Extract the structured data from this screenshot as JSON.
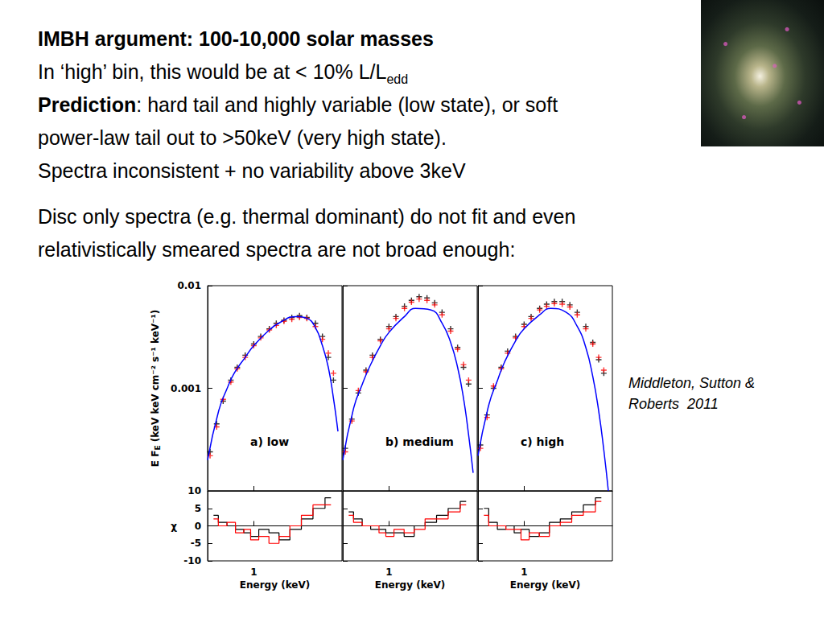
{
  "slide": {
    "lines": [
      [
        {
          "text": "IMBH argument: 100-10,000 solar masses",
          "style": "bold"
        }
      ],
      [
        {
          "text": "In ‘high’ bin, this would be at < 10% L/L"
        },
        {
          "text": "edd",
          "style": "sub"
        }
      ],
      [
        {
          "text": "Prediction",
          "style": "bold"
        },
        {
          "text": ": hard tail and highly variable (low state), or soft"
        }
      ],
      [
        {
          "text": "power-law tail out to >50keV (very high state)."
        }
      ],
      [
        {
          "text": "Spectra inconsistent + no variability above 3keV"
        }
      ]
    ],
    "paragraph": [
      [
        {
          "text": "Disc only spectra (e.g. thermal dominant) do not fit and even"
        }
      ],
      [
        {
          "text": "relativistically smeared spectra are not broad enough:"
        }
      ]
    ],
    "citation": [
      "Middleton, Sutton &",
      "Roberts  2011"
    ]
  },
  "chart_data": [
    {
      "type": "line",
      "title": "a) low",
      "ylabel": [
        {
          "text": "E F"
        },
        {
          "text": "E",
          "style": "sub"
        },
        {
          "text": " (keV keV cm⁻² s⁻¹ keV⁻¹)"
        }
      ],
      "log": true,
      "xlim": [
        0.3,
        10
      ],
      "xticks": [
        1
      ],
      "ylim": [
        0.0001,
        0.01
      ],
      "yticks": [
        0.001,
        0.01
      ],
      "tick_labels": "y",
      "series": [
        {
          "type": "scatter",
          "color": "#000000",
          "marker": "plus",
          "x": [
            0.32,
            0.38,
            0.45,
            0.55,
            0.65,
            0.8,
            1,
            1.2,
            1.5,
            1.8,
            2.2,
            2.7,
            3.3,
            4,
            5,
            6,
            7,
            8
          ],
          "values": [
            0.00024,
            0.00045,
            0.00075,
            0.0012,
            0.0016,
            0.0021,
            0.0027,
            0.0032,
            0.0038,
            0.0043,
            0.0046,
            0.0049,
            0.0051,
            0.0049,
            0.0043,
            0.0032,
            0.002,
            0.0012
          ]
        },
        {
          "type": "scatter",
          "color": "#ff0000",
          "marker": "plus",
          "x": [
            0.32,
            0.38,
            0.45,
            0.55,
            0.65,
            0.8,
            1,
            1.2,
            1.5,
            1.8,
            2.2,
            2.7,
            3.3,
            4,
            5,
            6,
            7,
            8
          ],
          "values": [
            0.00022,
            0.00042,
            0.00078,
            0.00115,
            0.00155,
            0.002,
            0.0026,
            0.0031,
            0.0037,
            0.0041,
            0.0045,
            0.0047,
            0.0049,
            0.0048,
            0.004,
            0.003,
            0.0022,
            0.0014
          ]
        },
        {
          "type": "line",
          "color": "#0000ff",
          "line_style": "solid",
          "x": [
            0.3,
            0.4,
            0.5,
            0.6,
            0.8,
            1,
            1.5,
            2,
            3,
            4,
            5,
            6,
            7,
            8,
            9
          ],
          "values": [
            0.0002,
            0.0006,
            0.001,
            0.0014,
            0.002,
            0.0026,
            0.0037,
            0.0044,
            0.005,
            0.0048,
            0.0039,
            0.0026,
            0.0016,
            0.0008,
            0.00038
          ]
        }
      ]
    },
    {
      "type": "line",
      "title": "b) medium",
      "log": true,
      "xlim": [
        0.3,
        10
      ],
      "xticks": [
        1
      ],
      "ylim": [
        0.0001,
        0.01
      ],
      "yticks": [
        0.001,
        0.01
      ],
      "tick_labels": false,
      "series": [
        {
          "type": "scatter",
          "color": "#000000",
          "marker": "plus",
          "x": [
            0.32,
            0.38,
            0.45,
            0.55,
            0.65,
            0.8,
            1,
            1.2,
            1.5,
            1.8,
            2.2,
            2.7,
            3.3,
            4,
            5,
            6,
            7,
            8
          ],
          "values": [
            0.00026,
            0.0005,
            0.0009,
            0.0015,
            0.0021,
            0.003,
            0.004,
            0.005,
            0.0063,
            0.0072,
            0.0078,
            0.0076,
            0.0068,
            0.0055,
            0.0038,
            0.0025,
            0.0016,
            0.0011
          ]
        },
        {
          "type": "scatter",
          "color": "#ff0000",
          "marker": "plus",
          "x": [
            0.32,
            0.38,
            0.45,
            0.55,
            0.65,
            0.8,
            1,
            1.2,
            1.5,
            1.8,
            2.2,
            2.7,
            3.3,
            4,
            5,
            6,
            7,
            8
          ],
          "values": [
            0.00024,
            0.00048,
            0.00095,
            0.00145,
            0.002,
            0.0029,
            0.0038,
            0.0048,
            0.006,
            0.0069,
            0.0074,
            0.0072,
            0.0065,
            0.0052,
            0.0036,
            0.0024,
            0.0017,
            0.0012
          ]
        },
        {
          "type": "line",
          "color": "#0000ff",
          "line_style": "solid",
          "x": [
            0.3,
            0.4,
            0.5,
            0.6,
            0.8,
            1,
            1.5,
            2,
            3,
            4,
            5,
            6,
            7,
            8,
            9
          ],
          "values": [
            0.0002,
            0.00065,
            0.0011,
            0.0016,
            0.0026,
            0.0035,
            0.005,
            0.006,
            0.0058,
            0.0043,
            0.0028,
            0.0016,
            0.0008,
            0.00035,
            0.00015
          ]
        }
      ]
    },
    {
      "type": "line",
      "title": "c) high",
      "log": true,
      "xlim": [
        0.3,
        10
      ],
      "xticks": [
        1
      ],
      "ylim": [
        0.0001,
        0.01
      ],
      "yticks": [
        0.001,
        0.01
      ],
      "tick_labels": false,
      "series": [
        {
          "type": "scatter",
          "color": "#000000",
          "marker": "plus",
          "x": [
            0.32,
            0.38,
            0.45,
            0.55,
            0.65,
            0.8,
            1,
            1.2,
            1.5,
            1.8,
            2.2,
            2.7,
            3.3,
            4,
            5,
            6,
            7,
            8
          ],
          "values": [
            0.00028,
            0.00055,
            0.001,
            0.0016,
            0.0023,
            0.0032,
            0.0042,
            0.005,
            0.006,
            0.0066,
            0.007,
            0.007,
            0.0065,
            0.0055,
            0.004,
            0.0028,
            0.0019,
            0.0014
          ]
        },
        {
          "type": "scatter",
          "color": "#ff0000",
          "marker": "plus",
          "x": [
            0.32,
            0.38,
            0.45,
            0.55,
            0.65,
            0.8,
            1,
            1.2,
            1.5,
            1.8,
            2.2,
            2.7,
            3.3,
            4,
            5,
            6,
            7,
            8
          ],
          "values": [
            0.00026,
            0.00052,
            0.00105,
            0.00155,
            0.0022,
            0.0031,
            0.004,
            0.0048,
            0.0058,
            0.0063,
            0.0067,
            0.0066,
            0.0062,
            0.0052,
            0.0038,
            0.0027,
            0.002,
            0.0015
          ]
        },
        {
          "type": "line",
          "color": "#0000ff",
          "line_style": "solid",
          "x": [
            0.3,
            0.4,
            0.5,
            0.6,
            0.8,
            1,
            1.5,
            2,
            3,
            4,
            5,
            6,
            7,
            8,
            9
          ],
          "values": [
            0.00022,
            0.0007,
            0.0012,
            0.0018,
            0.0029,
            0.0038,
            0.0052,
            0.006,
            0.0055,
            0.004,
            0.0025,
            0.0013,
            0.0006,
            0.00025,
            0.0001
          ]
        }
      ]
    },
    {
      "type": "line",
      "xlabel": "Energy (keV)",
      "ylabel": [
        {
          "text": "χ"
        }
      ],
      "log": "x",
      "xlim": [
        0.3,
        10
      ],
      "xticks": [
        1
      ],
      "ylim": [
        -10,
        10
      ],
      "yticks": [
        -10,
        -5,
        0,
        5,
        10
      ],
      "series": [
        {
          "color": "#000000",
          "line_style": "step",
          "x": [
            0.35,
            0.45,
            0.55,
            0.7,
            0.85,
            1,
            1.3,
            1.7,
            2.2,
            3,
            4,
            5.5,
            7.5
          ],
          "values": [
            3,
            1,
            0,
            -1,
            -2,
            -3,
            -1,
            -2,
            -4,
            -1,
            2,
            5,
            8
          ]
        },
        {
          "color": "#ff0000",
          "line_style": "step",
          "x": [
            0.35,
            0.45,
            0.55,
            0.7,
            0.85,
            1,
            1.3,
            1.7,
            2.2,
            3,
            4,
            5.5,
            7.5
          ],
          "values": [
            2,
            0,
            1,
            -2,
            -1,
            -4,
            -3,
            -5,
            -3,
            0,
            3,
            6,
            6
          ]
        }
      ]
    },
    {
      "type": "line",
      "xlabel": "Energy (keV)",
      "log": "x",
      "xlim": [
        0.3,
        10
      ],
      "xticks": [
        1
      ],
      "ylim": [
        -10,
        10
      ],
      "yticks": [
        -10,
        -5,
        0,
        5,
        10
      ],
      "tick_labels": "x",
      "series": [
        {
          "color": "#000000",
          "line_style": "step",
          "x": [
            0.35,
            0.45,
            0.55,
            0.7,
            0.85,
            1,
            1.3,
            1.7,
            2.2,
            3,
            4,
            5.5,
            7.5
          ],
          "values": [
            4,
            2,
            0,
            -1,
            -1,
            -2,
            -2,
            -3,
            0,
            1,
            3,
            5,
            7
          ]
        },
        {
          "color": "#ff0000",
          "line_style": "step",
          "x": [
            0.35,
            0.45,
            0.55,
            0.7,
            0.85,
            1,
            1.3,
            1.7,
            2.2,
            3,
            4,
            5.5,
            7.5
          ],
          "values": [
            3,
            1,
            0,
            0,
            -2,
            -3,
            -1,
            -2,
            -1,
            2,
            2,
            4,
            6
          ]
        }
      ]
    },
    {
      "type": "line",
      "xlabel": "Energy (keV)",
      "log": "x",
      "xlim": [
        0.3,
        10
      ],
      "xticks": [
        1
      ],
      "ylim": [
        -10,
        10
      ],
      "yticks": [
        -10,
        -5,
        0,
        5,
        10
      ],
      "tick_labels": "x",
      "series": [
        {
          "color": "#000000",
          "line_style": "step",
          "x": [
            0.35,
            0.45,
            0.55,
            0.7,
            0.85,
            1,
            1.3,
            1.7,
            2.2,
            3,
            4,
            5.5,
            7.5
          ],
          "values": [
            5,
            1,
            -1,
            0,
            -2,
            -1,
            -3,
            -2,
            1,
            2,
            4,
            6,
            8
          ]
        },
        {
          "color": "#ff0000",
          "line_style": "step",
          "x": [
            0.35,
            0.45,
            0.55,
            0.7,
            0.85,
            1,
            1.3,
            1.7,
            2.2,
            3,
            4,
            5.5,
            7.5
          ],
          "values": [
            3,
            0,
            0,
            -1,
            -1,
            -4,
            -2,
            -3,
            0,
            1,
            3,
            4,
            7
          ]
        }
      ]
    }
  ]
}
